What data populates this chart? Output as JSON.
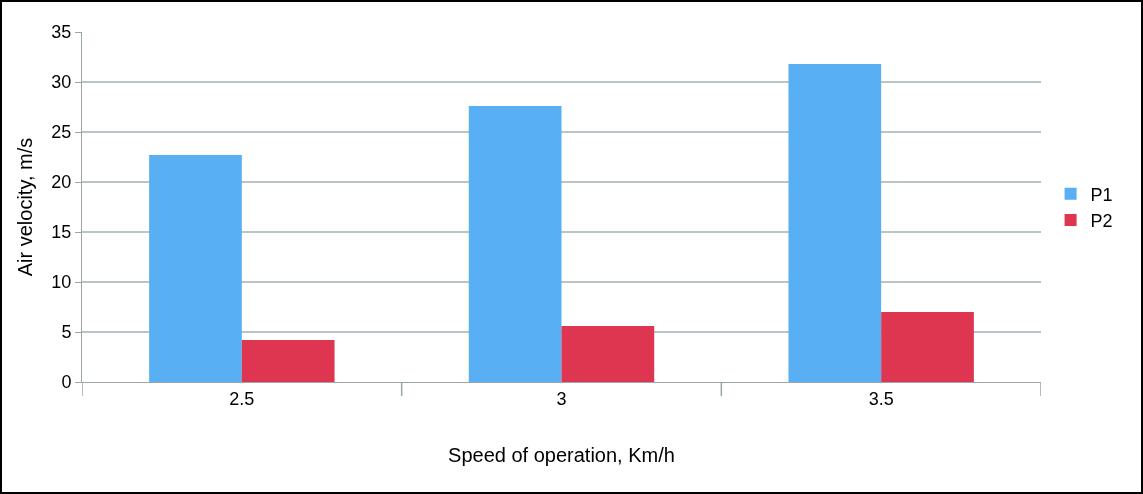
{
  "chart_data": {
    "type": "bar",
    "xlabel": "Speed of operation, Km/h",
    "ylabel": "Air velocity, m/s",
    "categories": [
      "2.5",
      "3",
      "3.5"
    ],
    "series": [
      {
        "name": "P1",
        "color": "#58aff3",
        "values": [
          22.7,
          27.6,
          31.8
        ]
      },
      {
        "name": "P2",
        "color": "#de3550",
        "values": [
          4.2,
          5.6,
          7.0
        ]
      }
    ],
    "ylim": [
      0,
      35
    ],
    "yticks": [
      0,
      5,
      10,
      15,
      20,
      25,
      30,
      35
    ],
    "grid": "y",
    "legend": "right"
  }
}
